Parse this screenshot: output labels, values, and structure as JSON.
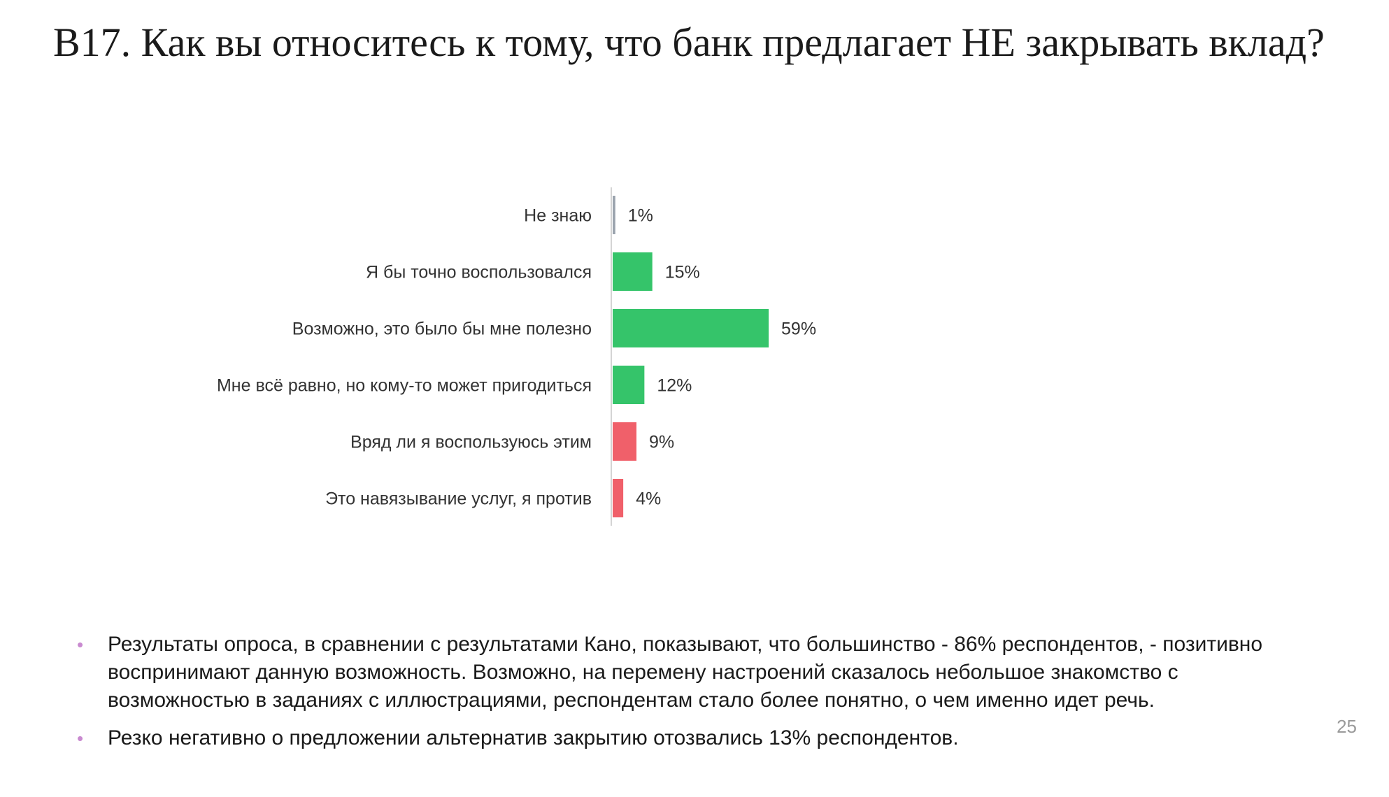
{
  "slide": {
    "title": "В17. Как вы относитесь к тому, что банк предлагает НЕ закрывать вклад?",
    "page_number": "25"
  },
  "chart_data": {
    "type": "bar",
    "orientation": "horizontal",
    "categories": [
      "Не знаю",
      "Я бы точно воспользовался",
      "Возможно, это было бы мне полезно",
      "Мне всё равно, но кому-то может пригодиться",
      "Вряд ли я воспользуюсь этим",
      "Это навязывание услуг, я против"
    ],
    "values": [
      1,
      15,
      59,
      12,
      9,
      4
    ],
    "data_labels": [
      "1%",
      "15%",
      "59%",
      "12%",
      "9%",
      "4%"
    ],
    "colors": [
      "#9aa3ad",
      "#35c46a",
      "#35c46a",
      "#35c46a",
      "#f0606a",
      "#f0606a"
    ],
    "title": "",
    "xlabel": "",
    "ylabel": "",
    "xlim": [
      0,
      100
    ],
    "grid": false,
    "legend": "none"
  },
  "notes": {
    "bullets": [
      "Результаты опроса, в сравнении с результатами Кано, показывают, что большинство - 86% респондентов, - позитивно воспринимают данную возможность.  Возможно, на перемену настроений сказалось небольшое знакомство с возможностью в заданиях с иллюстрациями, респондентам стало более понятно, о чем именно идет речь.",
      "Резко негативно о предложении альтернатив закрытию отозвались 13% респондентов."
    ],
    "bullet_glyph": "•"
  }
}
